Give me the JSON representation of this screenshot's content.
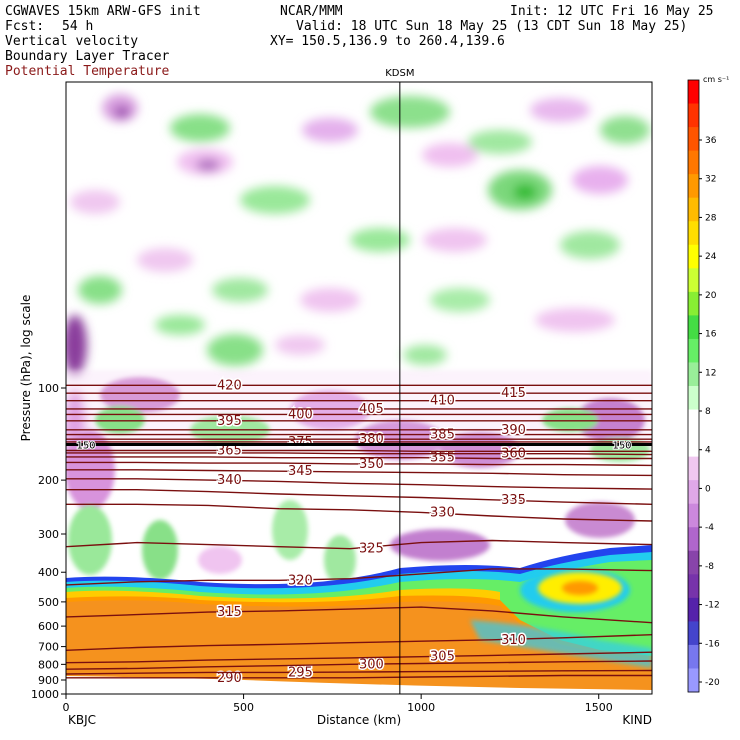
{
  "header": {
    "model": "CGWAVES 15km ARW-GFS init",
    "org": "NCAR/MMM",
    "init": "Init: 12 UTC Fri 16 May 25",
    "fcst_label": "Fcst:",
    "fcst_value": "54 h",
    "valid": "Valid: 18 UTC Sun 18 May 25 (13 CDT Sun 18 May 25)",
    "field1": "Vertical velocity",
    "field2": "Boundary Layer Tracer",
    "field3": "Potential Temperature",
    "xy": "XY= 150.5,136.9 to 260.4,139.6",
    "field3_color": "#8b1a1a"
  },
  "chart_data": {
    "type": "heatmap",
    "station_marker": {
      "label": "KDSM",
      "x_km": 940
    },
    "xlabel": "Distance (km)",
    "ylabel": "Pressure (hPa), log scale",
    "xlim": [
      0,
      1650
    ],
    "ylim": [
      1000,
      10
    ],
    "y_scale": "log",
    "x_ticks": [
      0,
      500,
      1000,
      1500
    ],
    "y_ticks": [
      100,
      200,
      300,
      400,
      500,
      600,
      700,
      800,
      900,
      1000
    ],
    "end_labels": {
      "left": "KBJC",
      "right": "KIND"
    },
    "colorbar": {
      "units": "cm s⁻¹",
      "tick_labels": [
        "36",
        "32",
        "28",
        "24",
        "20",
        "16",
        "12",
        "8",
        "4",
        "0",
        "-4",
        "-8",
        "-12",
        "-16",
        "-20"
      ],
      "colors": [
        "#ff0000",
        "#ff3300",
        "#ff5500",
        "#ff7700",
        "#ff9900",
        "#ffbb00",
        "#ffdd00",
        "#ffff00",
        "#ccff33",
        "#88ee33",
        "#44dd44",
        "#66ee66",
        "#99ee99",
        "#ccffcc",
        "#ffffff",
        "#ffffff",
        "#f0c8f0",
        "#e0a8e8",
        "#cc88dd",
        "#b066cc",
        "#8844aa",
        "#7733aa",
        "#5522aa",
        "#4444cc",
        "#7777ee",
        "#9999ff"
      ]
    },
    "theta_contours": [
      {
        "label": "290",
        "p": [
          885,
          885,
          885,
          885,
          885,
          880,
          875,
          870,
          870
        ]
      },
      {
        "label": "295",
        "p": [
          860,
          855,
          850,
          850,
          848,
          845,
          843,
          840,
          838
        ]
      },
      {
        "label": "300",
        "p": [
          830,
          825,
          815,
          808,
          800,
          795,
          790,
          785,
          780
        ]
      },
      {
        "label": "305",
        "p": [
          790,
          785,
          775,
          768,
          762,
          755,
          748,
          740,
          730
        ]
      },
      {
        "label": "310",
        "p": [
          720,
          705,
          695,
          688,
          680,
          672,
          665,
          655,
          640
        ]
      },
      {
        "label": "315",
        "p": [
          560,
          550,
          540,
          535,
          528,
          520,
          535,
          560,
          585
        ]
      },
      {
        "label": "320",
        "p": [
          440,
          430,
          425,
          425,
          420,
          405,
          390,
          390,
          395
        ]
      },
      {
        "label": "325",
        "p": [
          330,
          320,
          325,
          330,
          335,
          320,
          315,
          320,
          325
        ]
      },
      {
        "label": "330",
        "p": [
          240,
          240,
          242,
          248,
          250,
          255,
          262,
          268,
          272
        ]
      },
      {
        "label": "335",
        "p": [
          215,
          215,
          218,
          222,
          225,
          228,
          232,
          236,
          240
        ]
      },
      {
        "label": "340",
        "p": [
          198,
          198,
          200,
          202,
          205,
          207,
          210,
          212,
          214
        ]
      },
      {
        "label": "345",
        "p": [
          185,
          185,
          186,
          187,
          188,
          189,
          190,
          192,
          193
        ]
      },
      {
        "label": "350",
        "p": [
          175,
          175,
          176,
          176,
          177,
          177,
          178,
          178,
          179
        ]
      },
      {
        "label": "355",
        "p": [
          168,
          168,
          168,
          169,
          169,
          169,
          170,
          170,
          170
        ]
      },
      {
        "label": "360",
        "p": [
          163,
          163,
          163,
          163,
          164,
          164,
          164,
          164,
          165
        ]
      },
      {
        "label": "365",
        "p": [
          160,
          160,
          160,
          160,
          160,
          161,
          161,
          161,
          161
        ]
      },
      {
        "label": "375",
        "p": [
          150,
          150,
          150,
          150,
          150,
          150,
          150,
          150,
          150
        ]
      },
      {
        "label": "380",
        "p": [
          147,
          147,
          147,
          147,
          147,
          147,
          147,
          147,
          147
        ]
      },
      {
        "label": "385",
        "p": [
          142,
          142,
          142,
          142,
          142,
          142,
          142,
          142,
          142
        ]
      },
      {
        "label": "390",
        "p": [
          137,
          137,
          137,
          137,
          137,
          137,
          137,
          137,
          137
        ]
      },
      {
        "label": "395",
        "p": [
          128,
          128,
          128,
          128,
          128,
          128,
          128,
          128,
          128
        ]
      },
      {
        "label": "400",
        "p": [
          122,
          122,
          122,
          122,
          122,
          122,
          122,
          122,
          122
        ]
      },
      {
        "label": "405",
        "p": [
          117,
          117,
          117,
          117,
          117,
          117,
          117,
          117,
          117
        ]
      },
      {
        "label": "410",
        "p": [
          110,
          110,
          110,
          110,
          110,
          110,
          110,
          110,
          110
        ]
      },
      {
        "label": "415",
        "p": [
          104,
          104,
          104,
          104,
          104,
          104,
          104,
          104,
          104
        ]
      },
      {
        "label": "420",
        "p": [
          98,
          98,
          98,
          98,
          98,
          98,
          98,
          98,
          98
        ]
      }
    ],
    "theta_x_km": [
      0,
      200,
      400,
      600,
      800,
      1000,
      1200,
      1400,
      1650
    ],
    "theta_color": "#7a0f0f",
    "tracer_label": "150",
    "tracer_level_p": 153
  }
}
